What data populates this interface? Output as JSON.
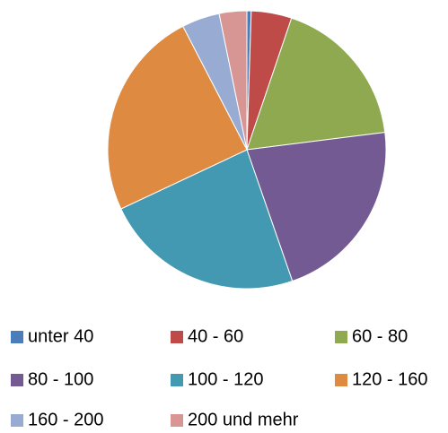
{
  "chart_data": {
    "type": "pie",
    "categories": [
      "unter 40",
      "40 - 60",
      "60 - 80",
      "80 - 100",
      "100 - 120",
      "120 - 160",
      "160 - 200",
      "200 und mehr"
    ],
    "values": [
      0.5,
      4.7,
      17.8,
      21.7,
      23.3,
      24.4,
      4.4,
      3.2
    ],
    "colors": [
      "#4a7ebb",
      "#be4b48",
      "#8ea94f",
      "#735a92",
      "#4399b1",
      "#de8a40",
      "#97abd3",
      "#d79694"
    ],
    "legend": "bottom"
  }
}
